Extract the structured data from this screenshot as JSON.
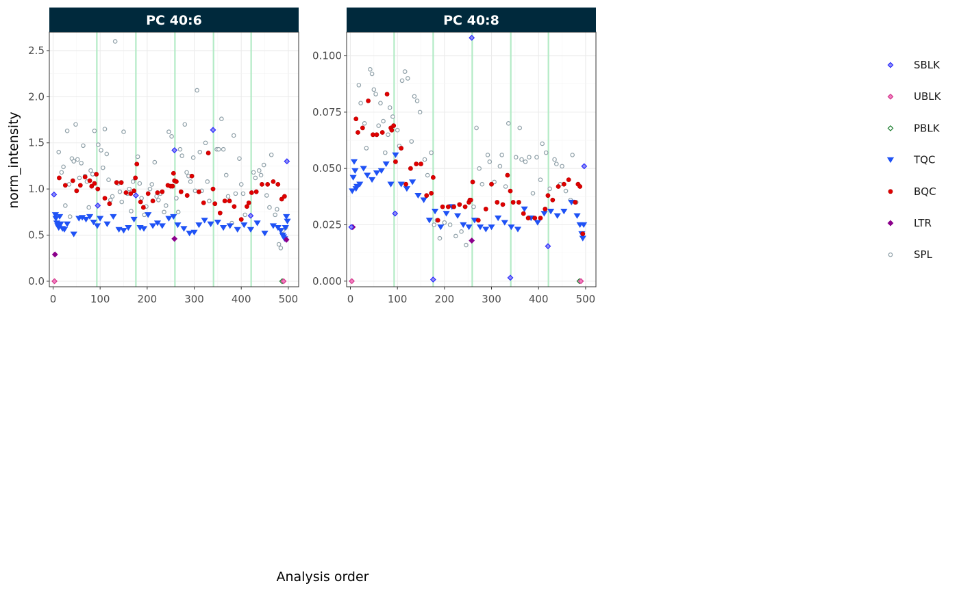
{
  "chart_data": {
    "type": "scatter",
    "xlabel": "Analysis order",
    "ylabel": "norm_intensity",
    "x_ticks": [
      0,
      100,
      200,
      300,
      400,
      500
    ],
    "xlim": [
      -8,
      522
    ],
    "grid": true,
    "legend_position": "right",
    "batch_boundaries": [
      93,
      176,
      259,
      341,
      421
    ],
    "batch_line_color": "#b3ebc6",
    "strip_color": "#00293c",
    "legend": [
      {
        "label": "SBLK",
        "shape": "diamond",
        "fill": "#8f8ff3",
        "stroke": "#2b2bff"
      },
      {
        "label": "UBLK",
        "shape": "diamond",
        "fill": "#f47cc0",
        "stroke": "#d23a8c"
      },
      {
        "label": "PBLK",
        "shape": "diamond",
        "fill": "#ffffff",
        "stroke": "#1b7d2e"
      },
      {
        "label": "TQC",
        "shape": "triangle-down",
        "fill": "#1f52f5",
        "stroke": "#1f52f5"
      },
      {
        "label": "BQC",
        "shape": "circle",
        "fill": "#e00000",
        "stroke": "#b00000"
      },
      {
        "label": "LTR",
        "shape": "diamond",
        "fill": "#8b008b",
        "stroke": "#8b008b"
      },
      {
        "label": "SPL",
        "shape": "circle-open",
        "fill": "#ffffff",
        "stroke": "#8fa0a8"
      }
    ],
    "panels": [
      {
        "title": "PC 40:6",
        "ylim": [
          -0.06,
          2.7
        ],
        "y_ticks": [
          0.0,
          0.5,
          1.0,
          1.5,
          2.0,
          2.5
        ],
        "y_tick_labels": [
          "0.0",
          "0.5",
          "1.0",
          "1.5",
          "2.0",
          "2.5"
        ],
        "series": [
          {
            "name": "SBLK",
            "x": [
              2,
              95,
              176,
              258,
              340,
              420,
              497
            ],
            "y": [
              0.94,
              0.82,
              0.93,
              1.42,
              1.64,
              0.71,
              1.3
            ]
          },
          {
            "name": "UBLK",
            "x": [
              3,
              490
            ],
            "y": [
              0.0,
              0.0
            ]
          },
          {
            "name": "PBLK",
            "x": [
              487
            ],
            "y": [
              0.0
            ]
          },
          {
            "name": "TQC",
            "x": [
              5,
              6,
              8,
              10,
              12,
              14,
              16,
              20,
              24,
              30,
              44,
              55,
              62,
              70,
              78,
              86,
              94,
              100,
              115,
              128,
              140,
              150,
              160,
              172,
              185,
              193,
              202,
              212,
              222,
              232,
              246,
              256,
              265,
              278,
              290,
              300,
              310,
              322,
              335,
              350,
              362,
              376,
              392,
              406,
              420,
              434,
              450,
              468,
              478,
              484,
              488,
              490,
              492,
              494,
              496,
              498
            ],
            "y": [
              0.72,
              0.68,
              0.63,
              0.6,
              0.58,
              0.7,
              0.62,
              0.57,
              0.56,
              0.62,
              0.51,
              0.68,
              0.69,
              0.67,
              0.7,
              0.64,
              0.6,
              0.68,
              0.62,
              0.7,
              0.56,
              0.55,
              0.58,
              0.67,
              0.58,
              0.57,
              0.72,
              0.6,
              0.63,
              0.6,
              0.68,
              0.7,
              0.61,
              0.57,
              0.52,
              0.53,
              0.61,
              0.66,
              0.62,
              0.64,
              0.58,
              0.6,
              0.56,
              0.61,
              0.56,
              0.63,
              0.52,
              0.6,
              0.58,
              0.55,
              0.5,
              0.48,
              0.46,
              0.58,
              0.7,
              0.65
            ]
          },
          {
            "name": "BQC",
            "x": [
              13,
              26,
              42,
              50,
              58,
              68,
              78,
              82,
              88,
              92,
              95,
              110,
              120,
              135,
              145,
              155,
              165,
              172,
              175,
              178,
              186,
              192,
              202,
              212,
              222,
              232,
              244,
              250,
              254,
              256,
              258,
              262,
              272,
              285,
              295,
              310,
              320,
              330,
              340,
              344,
              355,
              365,
              375,
              385,
              400,
              412,
              416,
              422,
              432,
              444,
              456,
              468,
              478,
              486,
              492
            ],
            "y": [
              1.12,
              1.04,
              1.09,
              0.98,
              1.04,
              1.13,
              1.09,
              1.03,
              1.06,
              1.16,
              1.0,
              0.9,
              0.84,
              1.07,
              1.07,
              0.96,
              0.95,
              0.98,
              1.12,
              1.27,
              0.86,
              0.8,
              0.95,
              0.87,
              0.96,
              0.97,
              1.04,
              1.03,
              1.03,
              1.17,
              1.09,
              1.08,
              0.97,
              0.93,
              1.14,
              0.97,
              0.85,
              1.39,
              1.0,
              0.84,
              0.74,
              0.87,
              0.87,
              0.81,
              0.67,
              0.81,
              0.85,
              0.96,
              0.97,
              1.05,
              1.05,
              1.08,
              1.05,
              0.89,
              0.92
            ]
          },
          {
            "name": "LTR",
            "x": [
              4,
              258,
              496
            ],
            "y": [
              0.29,
              0.46,
              0.45
            ]
          },
          {
            "name": "SPL",
            "x": [
              12,
              18,
              22,
              26,
              30,
              34,
              36,
              40,
              44,
              48,
              52,
              56,
              60,
              64,
              68,
              72,
              76,
              80,
              84,
              88,
              96,
              102,
              106,
              110,
              114,
              118,
              122,
              126,
              132,
              138,
              142,
              146,
              150,
              158,
              162,
              166,
              170,
              180,
              184,
              188,
              194,
              198,
              206,
              210,
              216,
              220,
              224,
              228,
              236,
              240,
              246,
              252,
              262,
              266,
              270,
              274,
              280,
              284,
              288,
              292,
              298,
              302,
              306,
              312,
              316,
              324,
              328,
              332,
              348,
              352,
              358,
              362,
              368,
              372,
              380,
              384,
              388,
              396,
              400,
              404,
              408,
              426,
              430,
              438,
              442,
              448,
              454,
              460,
              464,
              472,
              476,
              480,
              484,
              488,
              494
            ],
            "y": [
              1.4,
              1.18,
              1.24,
              0.82,
              1.63,
              1.05,
              0.7,
              1.33,
              1.3,
              1.7,
              1.32,
              1.12,
              1.28,
              1.47,
              1.14,
              1.08,
              0.8,
              1.2,
              1.16,
              1.63,
              1.48,
              1.42,
              1.23,
              1.65,
              1.38,
              1.1,
              0.88,
              0.92,
              2.6,
              1.06,
              0.97,
              0.86,
              1.62,
              0.95,
              1.0,
              0.76,
              1.08,
              1.35,
              1.06,
              0.9,
              0.72,
              0.81,
              1.0,
              1.05,
              1.29,
              0.92,
              0.88,
              0.95,
              0.75,
              0.82,
              1.62,
              1.57,
              0.9,
              0.75,
              1.43,
              1.36,
              1.7,
              1.18,
              1.14,
              1.08,
              1.34,
              0.98,
              2.07,
              1.4,
              0.98,
              1.5,
              1.08,
              0.87,
              1.43,
              1.43,
              1.76,
              1.43,
              1.15,
              0.92,
              0.63,
              1.58,
              0.95,
              1.33,
              1.05,
              0.95,
              0.72,
              1.18,
              1.12,
              1.2,
              1.15,
              1.26,
              0.93,
              0.8,
              1.37,
              0.72,
              0.78,
              0.4,
              0.36,
              0.55,
              0.58
            ]
          }
        ]
      },
      {
        "title": "PC 40:8",
        "ylim": [
          -0.0025,
          0.1105
        ],
        "y_ticks": [
          0.0,
          0.025,
          0.05,
          0.075,
          0.1
        ],
        "y_tick_labels": [
          "0.000",
          "0.025",
          "0.050",
          "0.075",
          "0.100"
        ],
        "series": [
          {
            "name": "SBLK",
            "x": [
              2,
              95,
              176,
              258,
              340,
              420,
              497
            ],
            "y": [
              0.024,
              0.03,
              0.0007,
              0.108,
              0.0015,
              0.0155,
              0.051
            ]
          },
          {
            "name": "UBLK",
            "x": [
              3,
              490
            ],
            "y": [
              0.0,
              0.0
            ]
          },
          {
            "name": "PBLK",
            "x": [
              487
            ],
            "y": [
              0.0
            ]
          },
          {
            "name": "TQC",
            "x": [
              4,
              6,
              8,
              10,
              12,
              14,
              20,
              28,
              36,
              46,
              56,
              66,
              76,
              86,
              96,
              108,
              120,
              132,
              144,
              156,
              168,
              180,
              192,
              204,
              216,
              228,
              240,
              252,
              264,
              276,
              288,
              300,
              314,
              328,
              342,
              356,
              370,
              384,
              398,
              412,
              426,
              440,
              454,
              470,
              482,
              488,
              492,
              494,
              496
            ],
            "y": [
              0.04,
              0.046,
              0.053,
              0.049,
              0.041,
              0.042,
              0.043,
              0.05,
              0.047,
              0.045,
              0.048,
              0.049,
              0.052,
              0.043,
              0.056,
              0.043,
              0.041,
              0.044,
              0.038,
              0.036,
              0.027,
              0.031,
              0.024,
              0.03,
              0.033,
              0.029,
              0.025,
              0.024,
              0.027,
              0.024,
              0.023,
              0.024,
              0.028,
              0.026,
              0.024,
              0.023,
              0.032,
              0.028,
              0.026,
              0.03,
              0.031,
              0.029,
              0.031,
              0.035,
              0.029,
              0.025,
              0.021,
              0.019,
              0.025
            ]
          },
          {
            "name": "BQC",
            "x": [
              12,
              16,
              26,
              38,
              48,
              56,
              68,
              78,
              86,
              88,
              92,
              96,
              108,
              118,
              128,
              140,
              150,
              162,
              172,
              176,
              186,
              196,
              208,
              220,
              232,
              244,
              252,
              254,
              256,
              260,
              272,
              288,
              300,
              312,
              324,
              334,
              340,
              346,
              358,
              368,
              378,
              392,
              404,
              414,
              420,
              430,
              442,
              454,
              464,
              478,
              484,
              488,
              494
            ],
            "y": [
              0.072,
              0.066,
              0.068,
              0.08,
              0.065,
              0.065,
              0.066,
              0.083,
              0.068,
              0.067,
              0.069,
              0.053,
              0.059,
              0.043,
              0.05,
              0.052,
              0.052,
              0.038,
              0.039,
              0.046,
              0.027,
              0.033,
              0.033,
              0.033,
              0.034,
              0.033,
              0.035,
              0.036,
              0.036,
              0.044,
              0.027,
              0.032,
              0.043,
              0.035,
              0.034,
              0.047,
              0.04,
              0.035,
              0.035,
              0.03,
              0.028,
              0.028,
              0.028,
              0.032,
              0.038,
              0.036,
              0.042,
              0.043,
              0.045,
              0.035,
              0.043,
              0.042,
              0.021
            ]
          },
          {
            "name": "LTR",
            "x": [
              5,
              258
            ],
            "y": [
              0.024,
              0.018
            ]
          },
          {
            "name": "SPL",
            "x": [
              18,
              22,
              30,
              34,
              42,
              46,
              50,
              54,
              60,
              64,
              70,
              74,
              80,
              84,
              90,
              100,
              104,
              110,
              116,
              122,
              130,
              136,
              142,
              148,
              158,
              164,
              172,
              178,
              184,
              190,
              200,
              212,
              224,
              236,
              246,
              262,
              268,
              274,
              280,
              292,
              296,
              306,
              318,
              322,
              330,
              336,
              352,
              360,
              364,
              372,
              380,
              388,
              396,
              404,
              408,
              416,
              424,
              434,
              438,
              446,
              450,
              458,
              468,
              472,
              480
            ],
            "y": [
              0.087,
              0.079,
              0.07,
              0.059,
              0.094,
              0.092,
              0.085,
              0.083,
              0.069,
              0.079,
              0.071,
              0.057,
              0.065,
              0.077,
              0.073,
              0.067,
              0.06,
              0.089,
              0.093,
              0.09,
              0.062,
              0.082,
              0.08,
              0.075,
              0.054,
              0.047,
              0.057,
              0.025,
              0.027,
              0.019,
              0.026,
              0.025,
              0.02,
              0.022,
              0.016,
              0.033,
              0.068,
              0.05,
              0.043,
              0.056,
              0.053,
              0.044,
              0.051,
              0.056,
              0.042,
              0.07,
              0.055,
              0.068,
              0.054,
              0.053,
              0.055,
              0.039,
              0.055,
              0.045,
              0.061,
              0.057,
              0.041,
              0.054,
              0.052,
              0.043,
              0.051,
              0.04,
              0.036,
              0.056,
              0.035
            ]
          }
        ]
      }
    ]
  }
}
